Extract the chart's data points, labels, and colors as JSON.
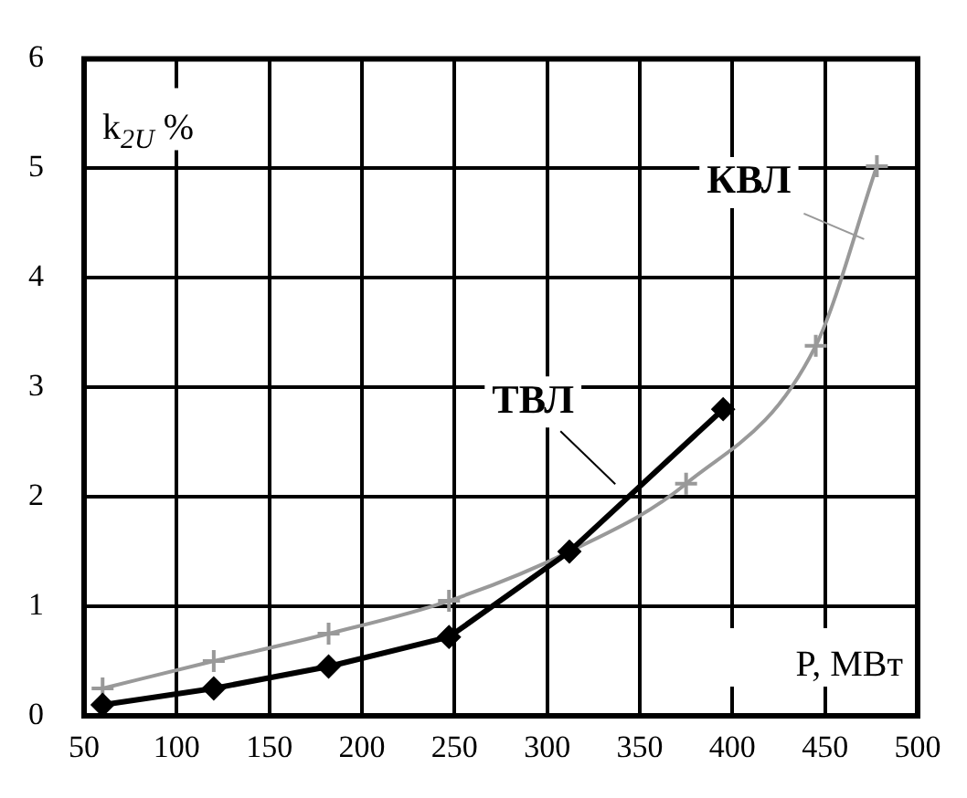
{
  "chart_data": {
    "type": "line",
    "xlabel": "P, МВт",
    "ylabel": "k$_{2U}$ %",
    "xlim": [
      50,
      500
    ],
    "xticks": [
      50,
      100,
      150,
      200,
      250,
      300,
      350,
      400,
      450,
      500
    ],
    "ylim": [
      0,
      6
    ],
    "yticks": [
      0,
      1,
      2,
      3,
      4,
      5,
      6
    ],
    "grid": true,
    "legend": false,
    "series": [
      {
        "name": "ТВЛ",
        "color": "#000000",
        "marker": "diamond",
        "x": [
          60,
          120,
          182,
          247,
          312,
          395
        ],
        "values": [
          0.1,
          0.25,
          0.45,
          0.72,
          1.5,
          2.8
        ]
      },
      {
        "name": "КВЛ",
        "color": "#999999",
        "marker": "cross",
        "x": [
          60,
          120,
          182,
          247,
          312,
          375,
          445,
          478
        ],
        "values": [
          0.25,
          0.5,
          0.75,
          1.05,
          1.5,
          2.12,
          3.38,
          5.02
        ]
      }
    ]
  }
}
